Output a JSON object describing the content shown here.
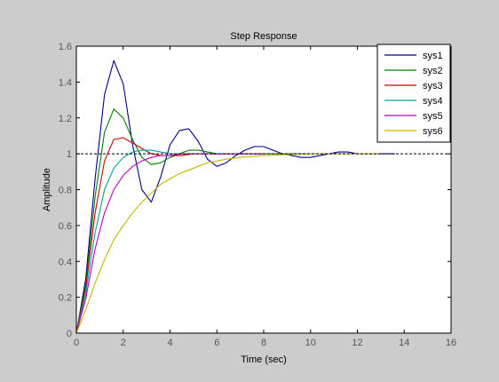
{
  "colors": {
    "figure_background": "#cccccc",
    "axes_background": "#ffffff",
    "axes_border": "#000000",
    "tick_text": "#555555",
    "reference_line": "#000000"
  },
  "chart_data": {
    "type": "line",
    "title": "Step Response",
    "xlabel": "Time (sec)",
    "ylabel": "Amplitude",
    "xlim": [
      0,
      16
    ],
    "ylim": [
      0,
      1.6
    ],
    "xticks": [
      0,
      2,
      4,
      6,
      8,
      10,
      12,
      14,
      16
    ],
    "yticks": [
      0,
      0.2,
      0.4,
      0.6,
      0.8,
      1,
      1.2,
      1.4,
      1.6
    ],
    "xtick_labels": [
      "0",
      "2",
      "4",
      "6",
      "8",
      "10",
      "12",
      "14",
      "16"
    ],
    "ytick_labels": [
      "0",
      "0.2",
      "0.4",
      "0.6",
      "0.8",
      "1",
      "1.2",
      "1.4",
      "1.6"
    ],
    "grid": false,
    "legend_position": "top-right",
    "reference_line": {
      "y": 1,
      "style": "dashed"
    },
    "series": [
      {
        "name": "sys1",
        "color": "#00008b",
        "x": [
          0,
          0.4,
          0.8,
          1.2,
          1.6,
          2.0,
          2.4,
          2.8,
          3.2,
          3.6,
          4.0,
          4.4,
          4.8,
          5.2,
          5.6,
          6.0,
          6.4,
          6.8,
          7.2,
          7.6,
          8.0,
          8.4,
          8.8,
          9.2,
          9.6,
          10.0,
          10.4,
          10.8,
          11.2,
          11.6,
          12.0,
          12.4,
          12.8,
          13.2,
          13.6
        ],
        "values": [
          0,
          0.3,
          0.86,
          1.33,
          1.52,
          1.39,
          1.05,
          0.8,
          0.73,
          0.87,
          1.05,
          1.13,
          1.14,
          1.07,
          0.97,
          0.93,
          0.95,
          0.99,
          1.02,
          1.04,
          1.04,
          1.02,
          1.0,
          0.99,
          0.98,
          0.98,
          0.99,
          1.0,
          1.01,
          1.01,
          1.0,
          1.0,
          1.0,
          1.0,
          1.0
        ]
      },
      {
        "name": "sys2",
        "color": "#008000",
        "x": [
          0,
          0.4,
          0.8,
          1.2,
          1.6,
          2.0,
          2.4,
          2.8,
          3.2,
          3.6,
          4.0,
          4.4,
          4.8,
          5.2,
          5.6,
          6.0,
          6.4,
          7.0,
          8.0,
          9.0,
          10.0
        ],
        "values": [
          0,
          0.27,
          0.76,
          1.12,
          1.25,
          1.2,
          1.08,
          0.98,
          0.94,
          0.95,
          0.98,
          1.0,
          1.02,
          1.02,
          1.01,
          1.0,
          1.0,
          1.0,
          1.0,
          1.0,
          1.0
        ]
      },
      {
        "name": "sys3",
        "color": "#cc0000",
        "x": [
          0,
          0.4,
          0.8,
          1.2,
          1.6,
          2.0,
          2.4,
          2.8,
          3.2,
          3.6,
          4.0,
          4.5,
          5.0,
          6.0,
          7.0,
          8.0
        ],
        "values": [
          0,
          0.25,
          0.67,
          0.96,
          1.08,
          1.09,
          1.06,
          1.03,
          1.0,
          0.99,
          0.99,
          0.99,
          1.0,
          1.0,
          1.0,
          1.0
        ]
      },
      {
        "name": "sys4",
        "color": "#00a0a0",
        "x": [
          0,
          0.4,
          0.8,
          1.2,
          1.6,
          2.0,
          2.4,
          2.8,
          3.2,
          3.6,
          4.0,
          4.5,
          5.0,
          6.0,
          7.0,
          8.0
        ],
        "values": [
          0,
          0.22,
          0.56,
          0.8,
          0.92,
          0.98,
          1.01,
          1.02,
          1.02,
          1.01,
          1.0,
          1.0,
          1.0,
          1.0,
          1.0,
          1.0
        ]
      },
      {
        "name": "sys5",
        "color": "#bf00bf",
        "x": [
          0,
          0.4,
          0.8,
          1.2,
          1.6,
          2.0,
          2.4,
          2.8,
          3.2,
          3.6,
          4.0,
          4.5,
          5.0,
          6.0,
          7.0,
          8.0
        ],
        "values": [
          0,
          0.19,
          0.47,
          0.67,
          0.8,
          0.88,
          0.93,
          0.96,
          0.98,
          0.99,
          0.99,
          1.0,
          1.0,
          1.0,
          1.0,
          1.0
        ]
      },
      {
        "name": "sys6",
        "color": "#c8b400",
        "x": [
          0,
          0.4,
          0.8,
          1.2,
          1.6,
          2.0,
          2.4,
          2.8,
          3.2,
          3.6,
          4.0,
          4.4,
          4.8,
          5.2,
          5.6,
          6.0,
          6.4,
          7.0,
          8.0,
          9.0,
          10.0,
          11.0,
          12.0,
          13.0
        ],
        "values": [
          0,
          0.13,
          0.28,
          0.41,
          0.52,
          0.6,
          0.67,
          0.73,
          0.78,
          0.83,
          0.86,
          0.89,
          0.91,
          0.93,
          0.95,
          0.96,
          0.97,
          0.98,
          0.99,
          0.995,
          1.0,
          1.0,
          1.0,
          1.0
        ]
      }
    ]
  }
}
